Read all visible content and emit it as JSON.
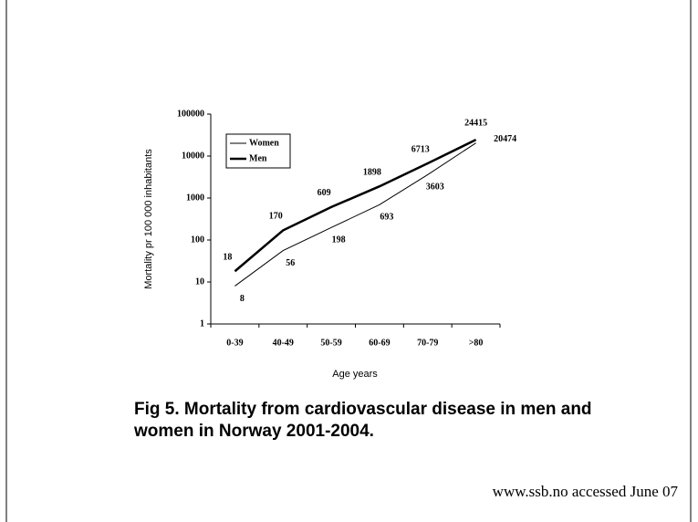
{
  "chart_data": {
    "type": "line",
    "categories": [
      "0-39",
      "40-49",
      "50-59",
      "60-69",
      "70-79",
      ">80"
    ],
    "series": [
      {
        "name": "Women",
        "color": "#000000",
        "values": [
          8,
          56,
          198,
          693,
          3603,
          20474
        ]
      },
      {
        "name": "Men",
        "color": "#000000",
        "values": [
          18,
          170,
          609,
          1898,
          6713,
          24415
        ]
      }
    ],
    "ylim": [
      1,
      100000
    ],
    "yticks": [
      1,
      10,
      100,
      1000,
      10000,
      100000
    ],
    "log_scale": true,
    "y_label": "Mortality pr 100 000 inhabitants",
    "x_label": "Age years",
    "legend_position": "upper left",
    "caption": "Fig 5. Mortality from cardiovascular disease in men and women in Norway 2001-2004.",
    "source": "www.ssb.no accessed June 07"
  }
}
